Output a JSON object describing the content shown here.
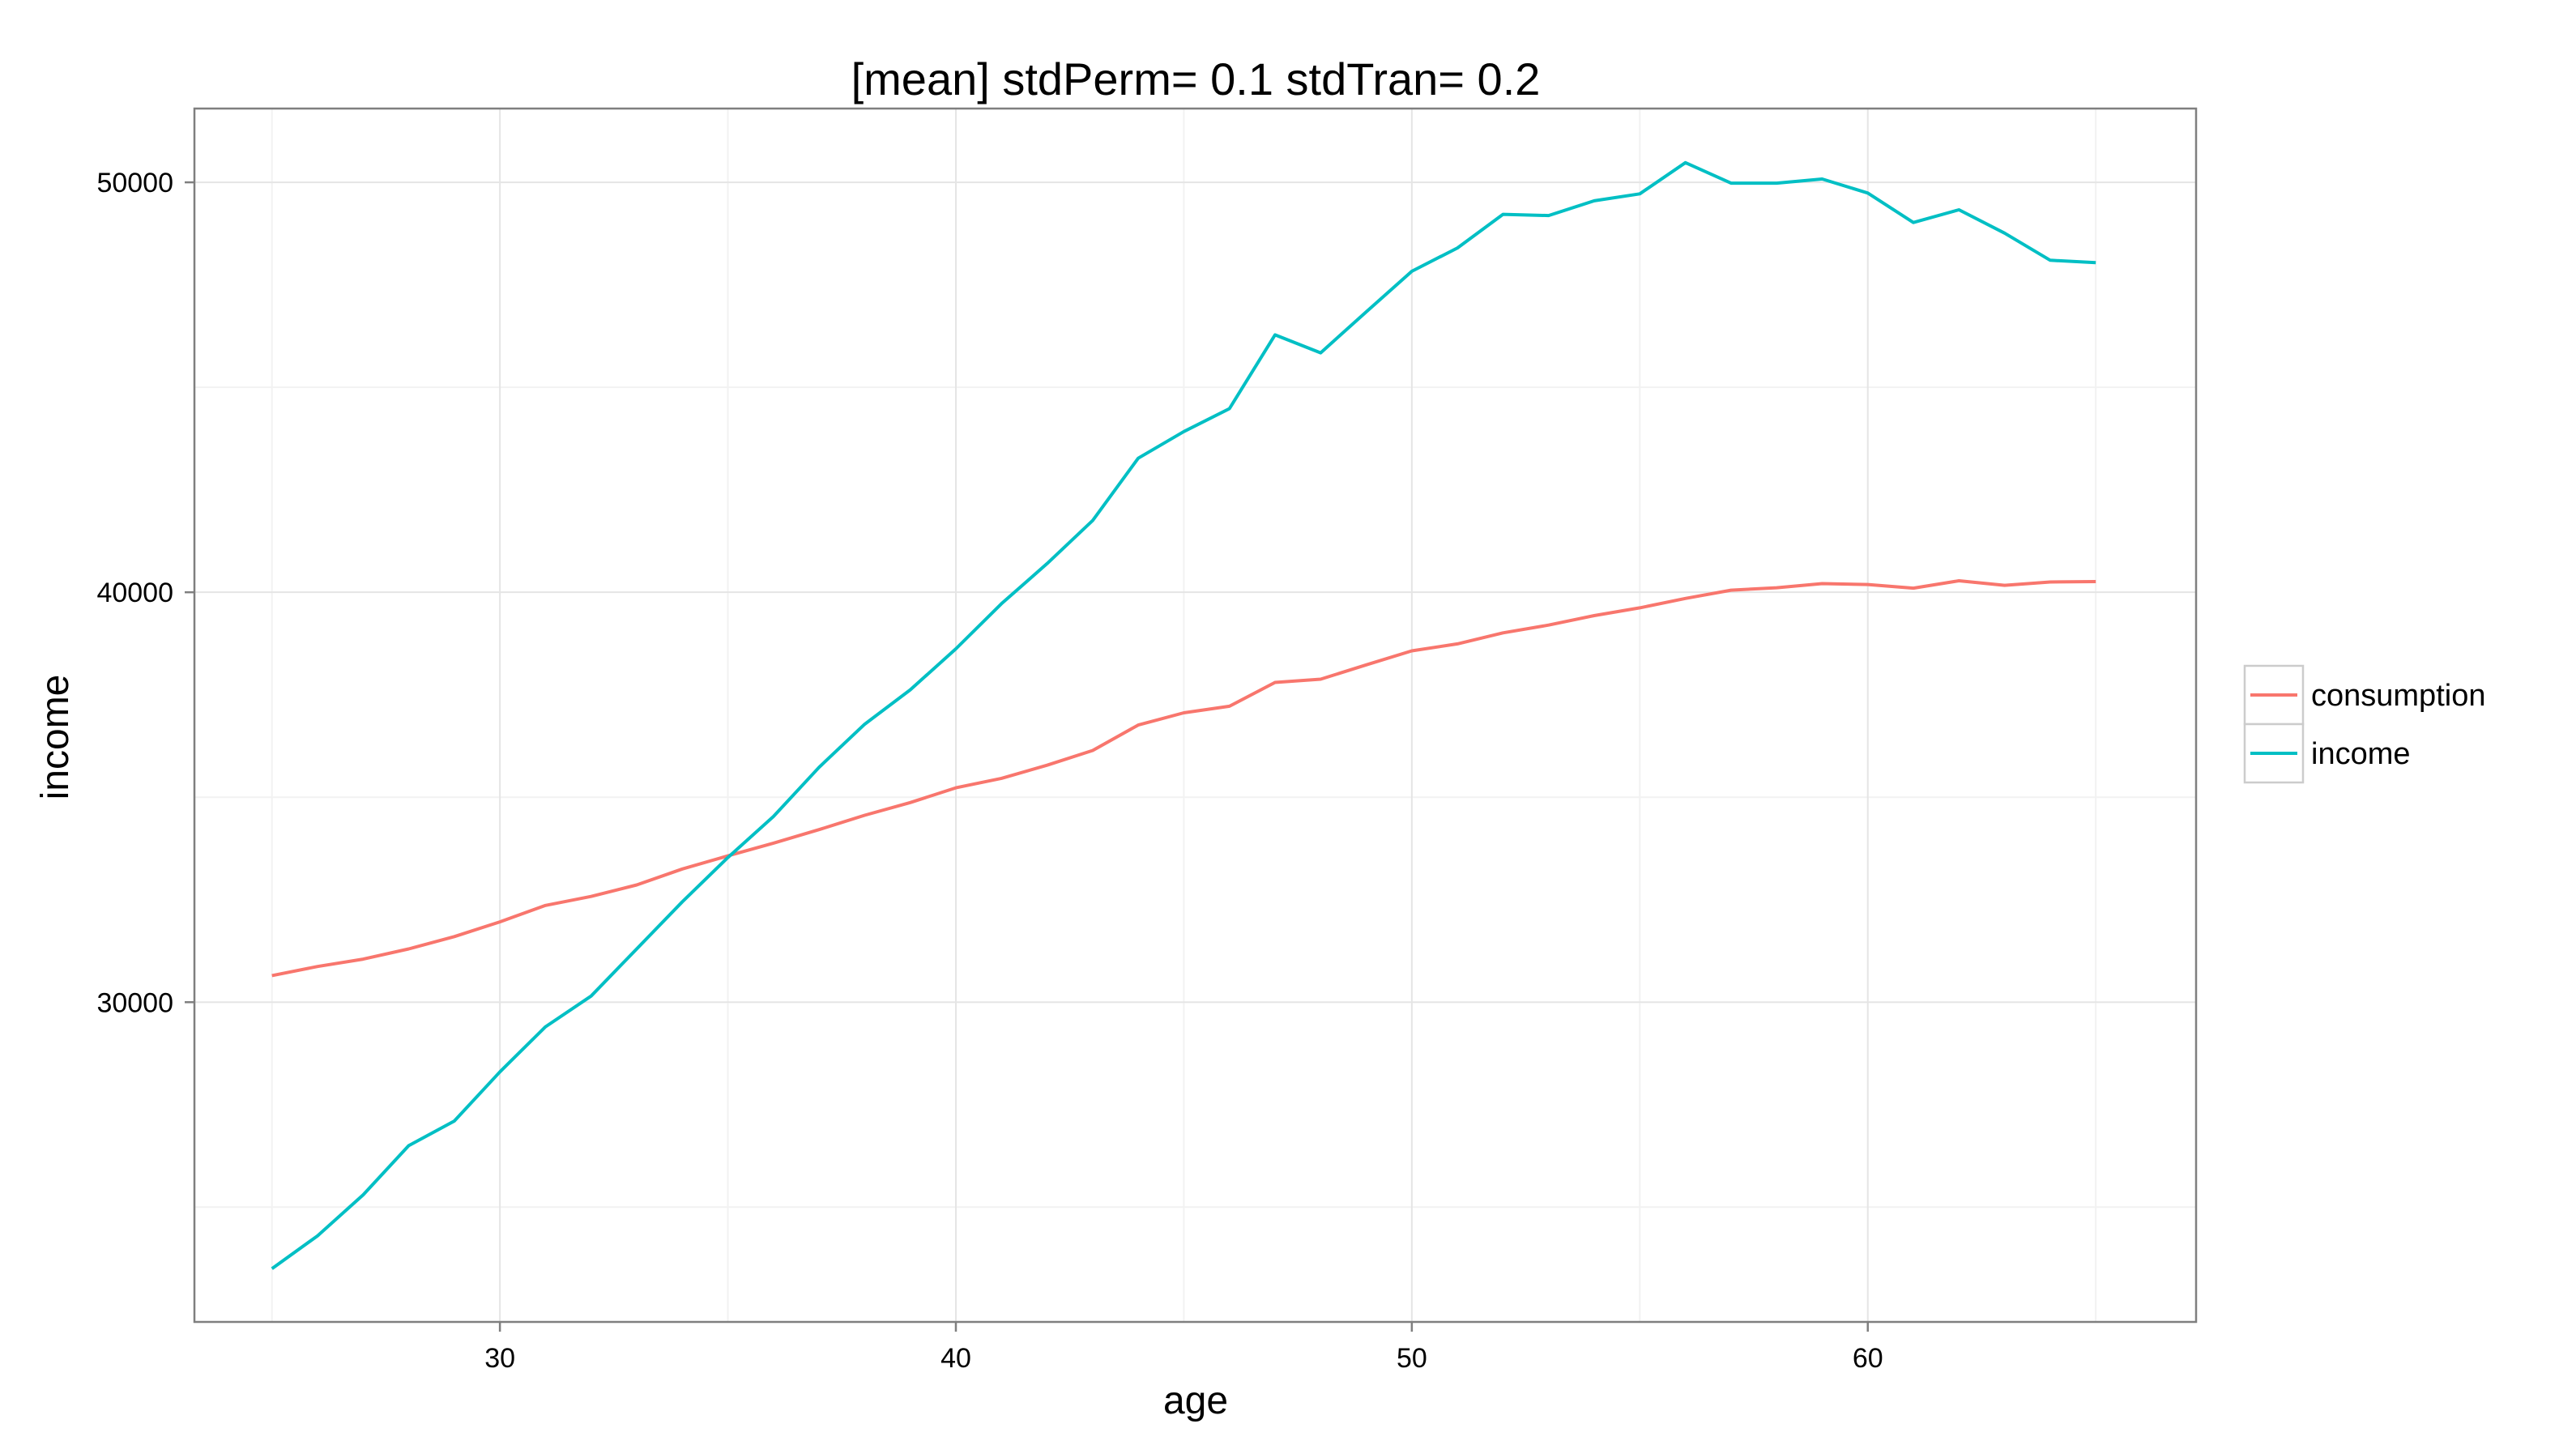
{
  "chart_data": {
    "type": "line",
    "title": "[mean] stdPerm= 0.1 stdTran= 0.2",
    "xlabel": "age",
    "ylabel": "income",
    "xlim": [
      23.3,
      67.2
    ],
    "ylim": [
      22200,
      51800
    ],
    "x_ticks": [
      30,
      40,
      50,
      60
    ],
    "x_tick_labels": [
      "30",
      "40",
      "50",
      "60"
    ],
    "y_ticks": [
      30000,
      40000,
      50000
    ],
    "y_tick_labels": [
      "30000",
      "40000",
      "50000"
    ],
    "grid": true,
    "legend_position": "right",
    "x": [
      25,
      26,
      27,
      28,
      29,
      30,
      31,
      32,
      33,
      34,
      35,
      36,
      37,
      38,
      39,
      40,
      41,
      42,
      43,
      44,
      45,
      46,
      47,
      48,
      49,
      50,
      51,
      52,
      53,
      54,
      55,
      56,
      57,
      58,
      59,
      60,
      61,
      62,
      63,
      64,
      65
    ],
    "series": [
      {
        "name": "consumption",
        "color": "#F8766D",
        "values": [
          30650,
          30870,
          31050,
          31300,
          31600,
          31960,
          32360,
          32580,
          32860,
          33250,
          33570,
          33880,
          34210,
          34560,
          34870,
          35230,
          35460,
          35780,
          36140,
          36760,
          37060,
          37220,
          37800,
          37880,
          38230,
          38570,
          38740,
          39010,
          39200,
          39430,
          39620,
          39850,
          40050,
          40110,
          40210,
          40190,
          40100,
          40280,
          40170,
          40250,
          40260
        ]
      },
      {
        "name": "income",
        "color": "#00BFC4",
        "values": [
          23500,
          24300,
          25300,
          26500,
          27100,
          28300,
          29400,
          30150,
          31300,
          32450,
          33530,
          34530,
          35730,
          36780,
          37620,
          38620,
          39720,
          40700,
          41750,
          43270,
          43920,
          44480,
          46280,
          45840,
          46840,
          47830,
          48400,
          49220,
          49190,
          49550,
          49720,
          50480,
          49980,
          49980,
          50080,
          49740,
          49020,
          49330,
          48760,
          48100,
          48040
        ]
      }
    ]
  }
}
